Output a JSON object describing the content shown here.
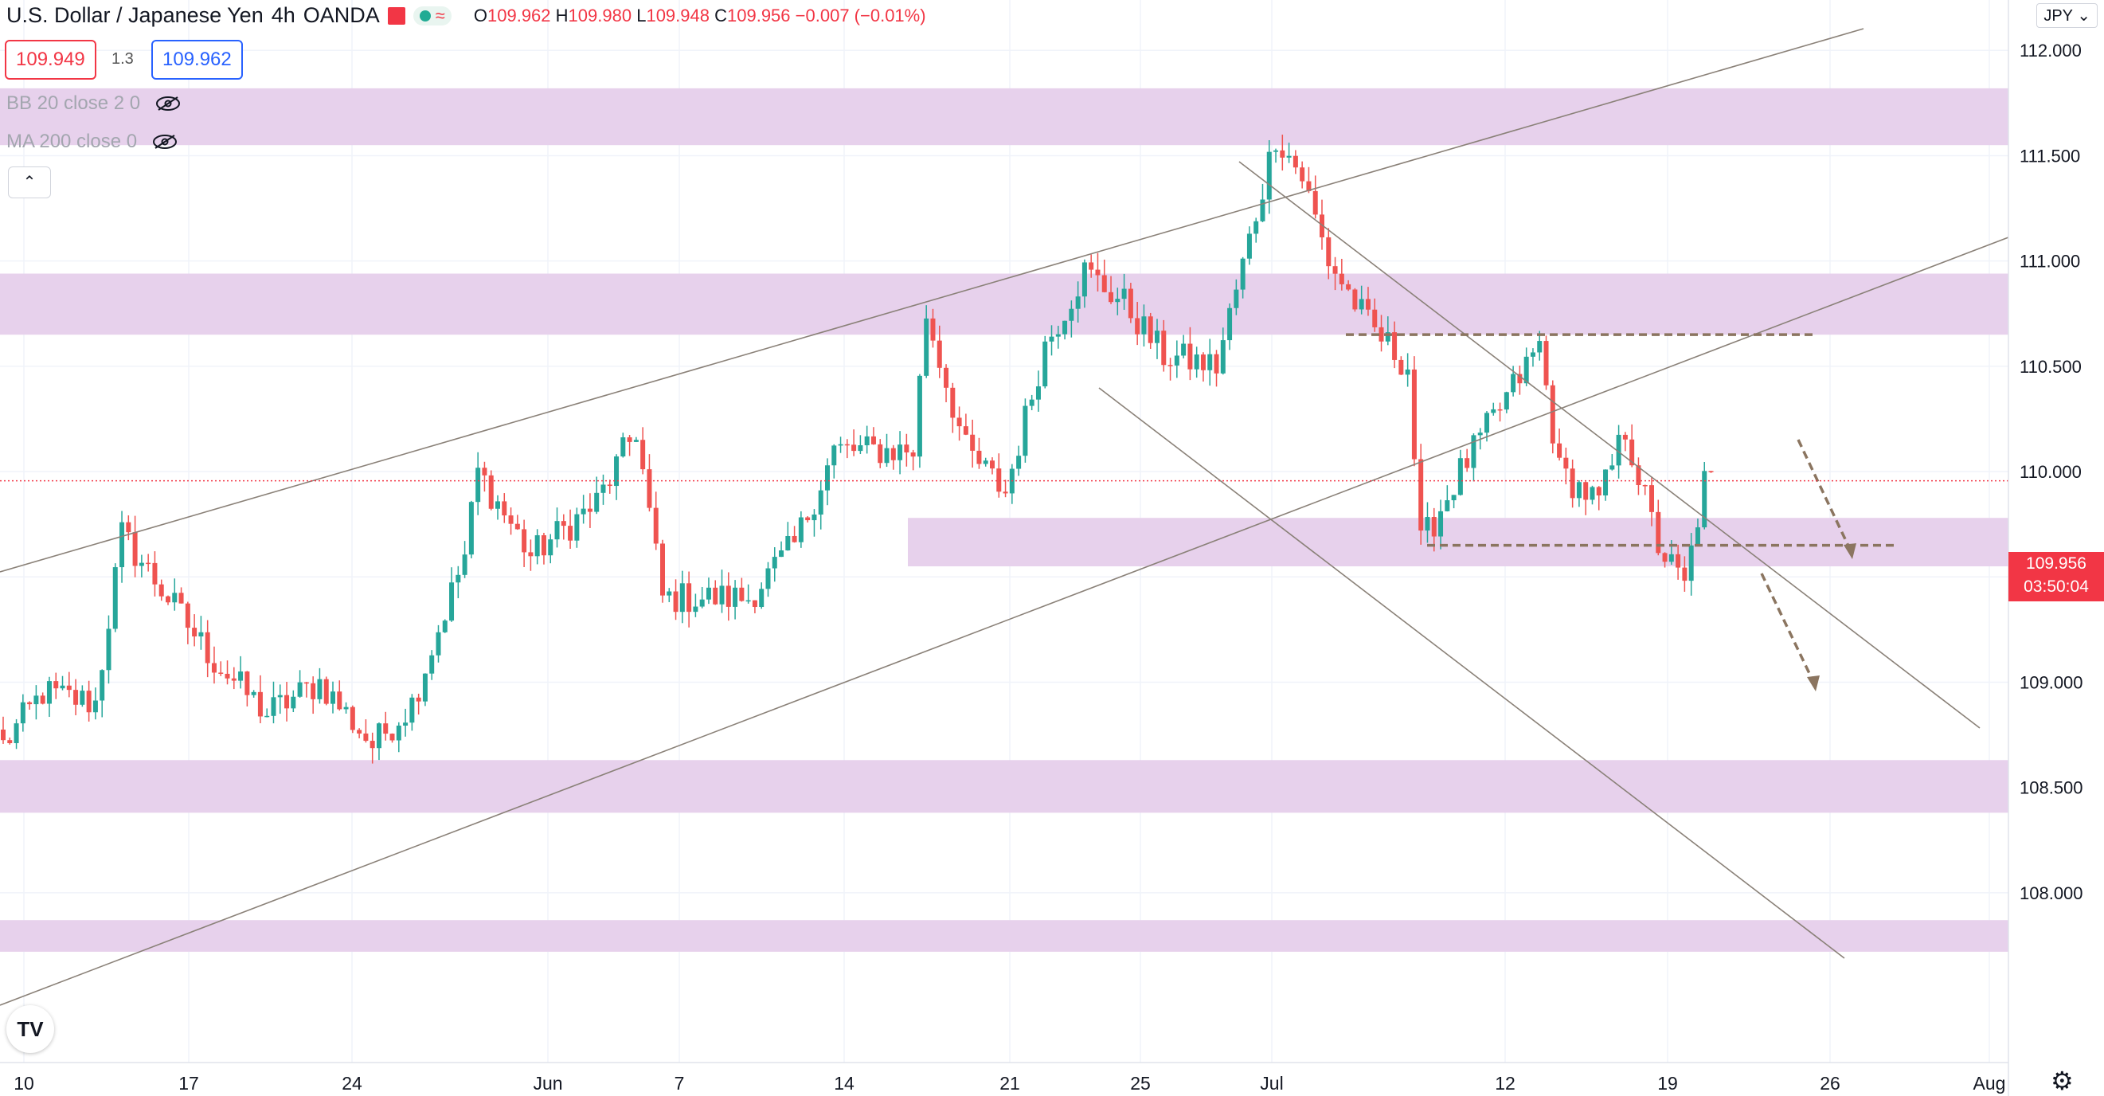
{
  "header": {
    "symbol": "U.S. Dollar / Japanese Yen",
    "interval": "4h",
    "broker": "OANDA",
    "ohlc": {
      "O": "109.962",
      "H": "109.980",
      "L": "109.948",
      "C": "109.956",
      "change": "−0.007 (−0.01%)"
    }
  },
  "quotes": {
    "bid": "109.949",
    "spread": "1.3",
    "ask": "109.962"
  },
  "indicators": [
    {
      "label": "BB 20 close 2 0",
      "icon": "eye-hidden-icon"
    },
    {
      "label": "MA 200 close 0",
      "icon": "eye-hidden-icon"
    }
  ],
  "currency_button": "JPY",
  "current_price": {
    "price": "109.956",
    "countdown": "03:50:04"
  },
  "colors": {
    "up": "#26a69a",
    "down": "#ef5350",
    "zone": "#e7d1ec",
    "current": "#f23645",
    "trendline": "#8a8178",
    "dashed": "#8b7560"
  },
  "chart_data": {
    "type": "candlestick",
    "title": "U.S. Dollar / Japanese Yen, 4h, OANDA",
    "ylim": [
      107.8,
      112.3
    ],
    "y_ticks": [
      "108.000",
      "108.500",
      "109.000",
      "109.500",
      "110.000",
      "110.500",
      "111.000",
      "111.500",
      "112.000"
    ],
    "x_ticks": [
      "10",
      "17",
      "24",
      "Jun",
      "7",
      "14",
      "21",
      "25",
      "Jul",
      "12",
      "19",
      "26",
      "Aug"
    ],
    "anchors_close": [
      [
        0,
        108.7
      ],
      [
        6,
        108.95
      ],
      [
        14,
        108.9
      ],
      [
        18,
        109.7
      ],
      [
        25,
        109.4
      ],
      [
        32,
        109.1
      ],
      [
        40,
        108.85
      ],
      [
        48,
        109.0
      ],
      [
        56,
        108.7
      ],
      [
        62,
        108.9
      ],
      [
        70,
        109.6
      ],
      [
        72,
        110.0
      ],
      [
        80,
        109.6
      ],
      [
        90,
        109.85
      ],
      [
        96,
        110.2
      ],
      [
        100,
        109.4
      ],
      [
        106,
        109.4
      ],
      [
        113,
        109.4
      ],
      [
        120,
        109.65
      ],
      [
        126,
        110.1
      ],
      [
        138,
        110.1
      ],
      [
        140,
        110.75
      ],
      [
        146,
        110.1
      ],
      [
        152,
        109.9
      ],
      [
        158,
        110.6
      ],
      [
        164,
        110.95
      ],
      [
        170,
        110.8
      ],
      [
        176,
        110.55
      ],
      [
        184,
        110.5
      ],
      [
        189,
        111.1
      ],
      [
        193,
        111.6
      ],
      [
        197,
        111.4
      ],
      [
        201,
        111.0
      ],
      [
        207,
        110.7
      ],
      [
        213,
        110.5
      ],
      [
        215,
        109.65
      ],
      [
        221,
        110.0
      ],
      [
        227,
        110.3
      ],
      [
        233,
        110.6
      ],
      [
        236,
        110.0
      ],
      [
        242,
        109.85
      ],
      [
        246,
        110.2
      ],
      [
        251,
        109.65
      ],
      [
        255,
        109.45
      ],
      [
        258,
        109.95
      ]
    ],
    "resistance_support_zones": [
      [
        111.55,
        111.82
      ],
      [
        110.65,
        110.94
      ],
      [
        109.55,
        109.78
      ],
      [
        108.38,
        108.63
      ],
      [
        107.72,
        107.87
      ]
    ],
    "dashed_levels": [
      110.65,
      109.65
    ]
  }
}
